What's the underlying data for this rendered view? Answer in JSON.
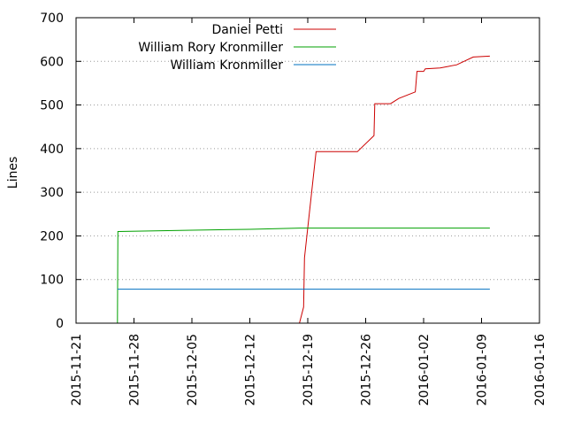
{
  "chart_data": {
    "type": "line",
    "ylabel": "Lines",
    "ylim": [
      0,
      700
    ],
    "yticks": [
      "0",
      "100",
      "200",
      "300",
      "400",
      "500",
      "600",
      "700"
    ],
    "xlim": [
      "2015-11-21",
      "2016-01-16"
    ],
    "xticks": [
      "2015-11-21",
      "2015-11-28",
      "2015-12-05",
      "2015-12-12",
      "2015-12-19",
      "2015-12-26",
      "2016-01-02",
      "2016-01-09",
      "2016-01-16"
    ],
    "grid": "y-dotted",
    "legend_position": "top-center",
    "series": [
      {
        "name": "Daniel Petti",
        "color": "#cc0000",
        "points": [
          [
            "2015-12-18",
            0
          ],
          [
            "2015-12-18.5",
            37
          ],
          [
            "2015-12-18.6",
            150
          ],
          [
            "2015-12-20",
            393
          ],
          [
            "2015-12-25",
            393
          ],
          [
            "2015-12-27",
            430
          ],
          [
            "2015-12-27.1",
            503
          ],
          [
            "2015-12-29",
            503
          ],
          [
            "2015-12-30",
            515
          ],
          [
            "2016-01-01",
            530
          ],
          [
            "2016-01-01.2",
            577
          ],
          [
            "2016-01-02",
            577
          ],
          [
            "2016-01-02.2",
            583
          ],
          [
            "2016-01-04",
            585
          ],
          [
            "2016-01-06",
            592
          ],
          [
            "2016-01-08",
            610
          ],
          [
            "2016-01-10",
            612
          ]
        ]
      },
      {
        "name": "William Rory Kronmiller",
        "color": "#00a000",
        "points": [
          [
            "2015-11-26",
            0
          ],
          [
            "2015-11-26.05",
            210
          ],
          [
            "2015-12-05",
            213
          ],
          [
            "2015-12-12",
            215
          ],
          [
            "2015-12-18",
            218
          ],
          [
            "2016-01-10",
            218
          ]
        ]
      },
      {
        "name": "William Kronmiller",
        "color": "#0070c0",
        "points": [
          [
            "2015-11-26",
            78
          ],
          [
            "2016-01-10",
            78
          ]
        ]
      }
    ]
  }
}
